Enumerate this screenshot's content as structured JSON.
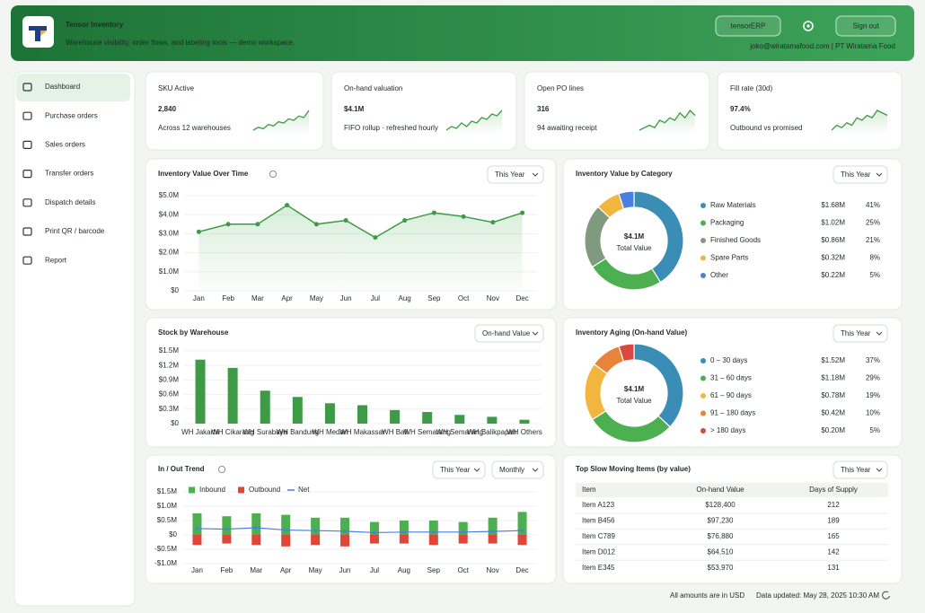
{
  "header": {
    "title": "Tensor Inventory",
    "subtitle": "Warehouse visibility, order flows, and labeling tools — demo workspace.",
    "erp_button": "tensorERP",
    "signout_button": "Sign out",
    "user": "joko@wiratamafood.com | PT Wiratama Food"
  },
  "nav": {
    "items": [
      "Dashboard",
      "Purchase orders",
      "Sales orders",
      "Transfer orders",
      "Dispatch details",
      "Print QR / barcode",
      "Report"
    ],
    "active": 0
  },
  "kpis": [
    {
      "label": "SKU Active",
      "value": "2,840",
      "caption": "Across 12 warehouses",
      "trend": [
        2,
        3,
        2.5,
        4,
        3.5,
        5,
        4.5,
        6,
        5.5,
        7,
        6.5,
        9
      ]
    },
    {
      "label": "On-hand valuation",
      "value": "$4.1M",
      "caption": "FIFO rollup · refreshed hourly",
      "trend": [
        2,
        3,
        2.5,
        4,
        3,
        4.5,
        4,
        5.5,
        5,
        6.5,
        6,
        7.5
      ]
    },
    {
      "label": "Open PO lines",
      "value": "316",
      "caption": "94 awaiting receipt",
      "trend": [
        2,
        2.5,
        3,
        2.5,
        4,
        3.5,
        4.5,
        4,
        5.5,
        4.5,
        6,
        5
      ]
    },
    {
      "label": "Fill rate (30d)",
      "value": "97.4%",
      "caption": "Outbound vs promised",
      "trend": [
        2,
        3,
        2.5,
        3.5,
        3,
        4.5,
        4,
        5,
        4.5,
        6,
        5.5,
        5
      ]
    }
  ],
  "chart_data": [
    {
      "type": "line",
      "title": "Inventory Value Over Time",
      "filters": [
        "This Year"
      ],
      "color": "#3f9a47",
      "categories": [
        "Jan",
        "Feb",
        "Mar",
        "Apr",
        "May",
        "Jun",
        "Jul",
        "Aug",
        "Sep",
        "Oct",
        "Nov",
        "Dec"
      ],
      "values": [
        3.1,
        3.5,
        3.5,
        4.5,
        3.5,
        3.7,
        2.8,
        3.7,
        4.1,
        3.9,
        3.6,
        4.1
      ],
      "ylim": [
        0,
        5
      ],
      "yticks": [
        {
          "value": 0,
          "label": "$0"
        },
        {
          "value": 1,
          "label": "$1.0M"
        },
        {
          "value": 2,
          "label": "$2.0M"
        },
        {
          "value": 3,
          "label": "$3.0M"
        },
        {
          "value": 4,
          "label": "$4.0M"
        },
        {
          "value": 5,
          "label": "$5.0M"
        }
      ],
      "grid": true
    },
    {
      "type": "donut",
      "title": "Inventory Value by Category",
      "filters": [
        "This Year"
      ],
      "center_value": "$4.1M",
      "center_label": "Total Value",
      "categories": [
        "Raw Materials",
        "Packaging",
        "Finished Goods",
        "Spare Parts",
        "Other"
      ],
      "amounts": [
        "$1.68M",
        "$1.02M",
        "$0.86M",
        "$0.32M",
        "$0.22M"
      ],
      "values": [
        41,
        25,
        21,
        8,
        5
      ],
      "value_labels": [
        "41%",
        "25%",
        "21%",
        "8%",
        "5%"
      ],
      "colors": [
        "#3a8db5",
        "#4caf50",
        "#7f9a7e",
        "#f2b63f",
        "#4a7fe0"
      ]
    },
    {
      "type": "bar",
      "title": "Stock by Warehouse",
      "filters": [
        "On-hand Value"
      ],
      "color": "#3f9a47",
      "categories": [
        "WH Jakarta",
        "WH Cikarang",
        "WH Surabaya",
        "WH Bandung",
        "WH Medan",
        "WH Makassar",
        "WH Bali",
        "WH Semarang",
        "WH Semarang",
        "WH Balikpapan",
        "WH Others"
      ],
      "values": [
        1.32,
        1.15,
        0.68,
        0.55,
        0.42,
        0.38,
        0.28,
        0.24,
        0.18,
        0.14,
        0.08
      ],
      "ylim": [
        0,
        1.5
      ],
      "yticks": [
        {
          "value": 0,
          "label": "$0"
        },
        {
          "value": 0.3,
          "label": "$0.3M"
        },
        {
          "value": 0.6,
          "label": "$0.6M"
        },
        {
          "value": 0.9,
          "label": "$0.9M"
        },
        {
          "value": 1.2,
          "label": "$1.2M"
        },
        {
          "value": 1.5,
          "label": "$1.5M"
        }
      ],
      "grid": true
    },
    {
      "type": "donut",
      "title": "Inventory Aging (On-hand Value)",
      "filters": [
        "This Year"
      ],
      "center_value": "$4.1M",
      "center_label": "Total Value",
      "categories": [
        "0 – 30 days",
        "31 – 60 days",
        "61 – 90 days",
        "91 – 180 days",
        "> 180 days"
      ],
      "amounts": [
        "$1.52M",
        "$1.18M",
        "$0.78M",
        "$0.42M",
        "$0.20M"
      ],
      "values": [
        37,
        29,
        19,
        10,
        5
      ],
      "value_labels": [
        "37%",
        "29%",
        "19%",
        "10%",
        "5%"
      ],
      "colors": [
        "#3a8db5",
        "#4caf50",
        "#f2b63f",
        "#e8843a",
        "#d9473f"
      ]
    },
    {
      "type": "combo",
      "title": "In / Out Trend",
      "filters": [
        "This Year",
        "Monthly"
      ],
      "categories": [
        "Jan",
        "Feb",
        "Mar",
        "Apr",
        "May",
        "Jun",
        "Jul",
        "Aug",
        "Sep",
        "Oct",
        "Nov",
        "Dec"
      ],
      "series": [
        {
          "name": "Inbound",
          "kind": "bar",
          "color": "#4caf50",
          "values": [
            0.75,
            0.65,
            0.75,
            0.7,
            0.6,
            0.6,
            0.45,
            0.5,
            0.5,
            0.45,
            0.6,
            0.8
          ]
        },
        {
          "name": "Outbound",
          "kind": "bar",
          "color": "#e0453a",
          "values": [
            -0.35,
            -0.3,
            -0.35,
            -0.4,
            -0.35,
            -0.4,
            -0.3,
            -0.3,
            -0.35,
            -0.3,
            -0.3,
            -0.35
          ]
        },
        {
          "name": "Net",
          "kind": "line",
          "color": "#4a7fe0",
          "values": [
            0.22,
            0.2,
            0.25,
            0.17,
            0.15,
            0.13,
            0.08,
            0.1,
            0.1,
            0.1,
            0.12,
            0.15
          ]
        }
      ],
      "ylim": [
        -1,
        1.5
      ],
      "yticks": [
        {
          "value": -1,
          "label": "-$1.0M"
        },
        {
          "value": -0.5,
          "label": "-$0.5M"
        },
        {
          "value": 0,
          "label": "$0"
        },
        {
          "value": 0.5,
          "label": "$0.5M"
        },
        {
          "value": 1,
          "label": "$1.0M"
        },
        {
          "value": 1.5,
          "label": "$1.5M"
        }
      ],
      "grid": true
    }
  ],
  "table": {
    "title": "Top Slow Moving Items (by value)",
    "filters": [
      "This Year"
    ],
    "columns": [
      "Item",
      "On-hand Value",
      "Days of Supply"
    ],
    "rows": [
      [
        "Item A123",
        "$128,400",
        212
      ],
      [
        "Item B456",
        "$97,230",
        189
      ],
      [
        "Item C789",
        "$76,880",
        165
      ],
      [
        "Item D012",
        "$64,510",
        142
      ],
      [
        "Item E345",
        "$53,970",
        131
      ]
    ]
  },
  "footer": {
    "note": "All amounts are in USD",
    "updated": "Data updated: May 28, 2025 10:30 AM"
  }
}
